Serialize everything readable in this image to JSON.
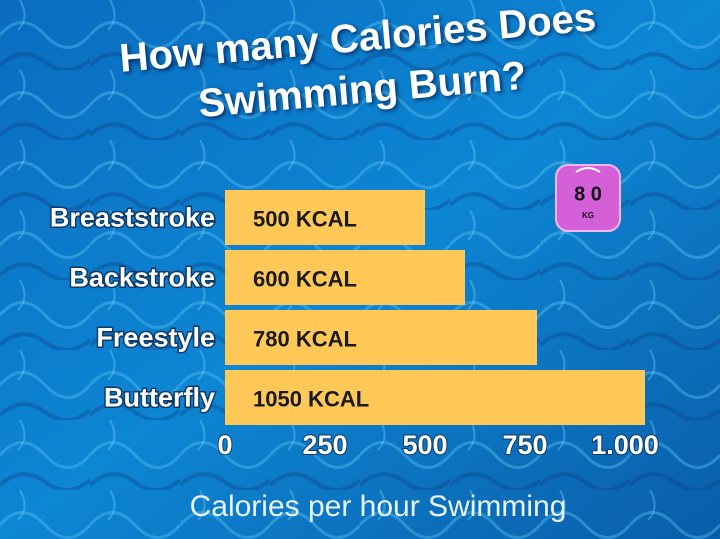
{
  "chart_data": {
    "type": "bar",
    "orientation": "horizontal",
    "title": "How many Calories Does Swimming Burn?",
    "x_label": "Calories per hour Swimming",
    "categories": [
      "Breaststroke",
      "Backstroke",
      "Freestyle",
      "Butterfly"
    ],
    "values": [
      500,
      600,
      780,
      1050
    ],
    "value_labels": [
      "500 KCAL",
      "600 KCAL",
      "780 KCAL",
      "1050 KCAL"
    ],
    "color": "#ffc857",
    "xlim": [
      0,
      1050
    ],
    "xticks": [
      0,
      250,
      500,
      750,
      {
        "value": 1000,
        "label": "1.000"
      }
    ],
    "annotations": [
      "8 0",
      "KG"
    ]
  }
}
